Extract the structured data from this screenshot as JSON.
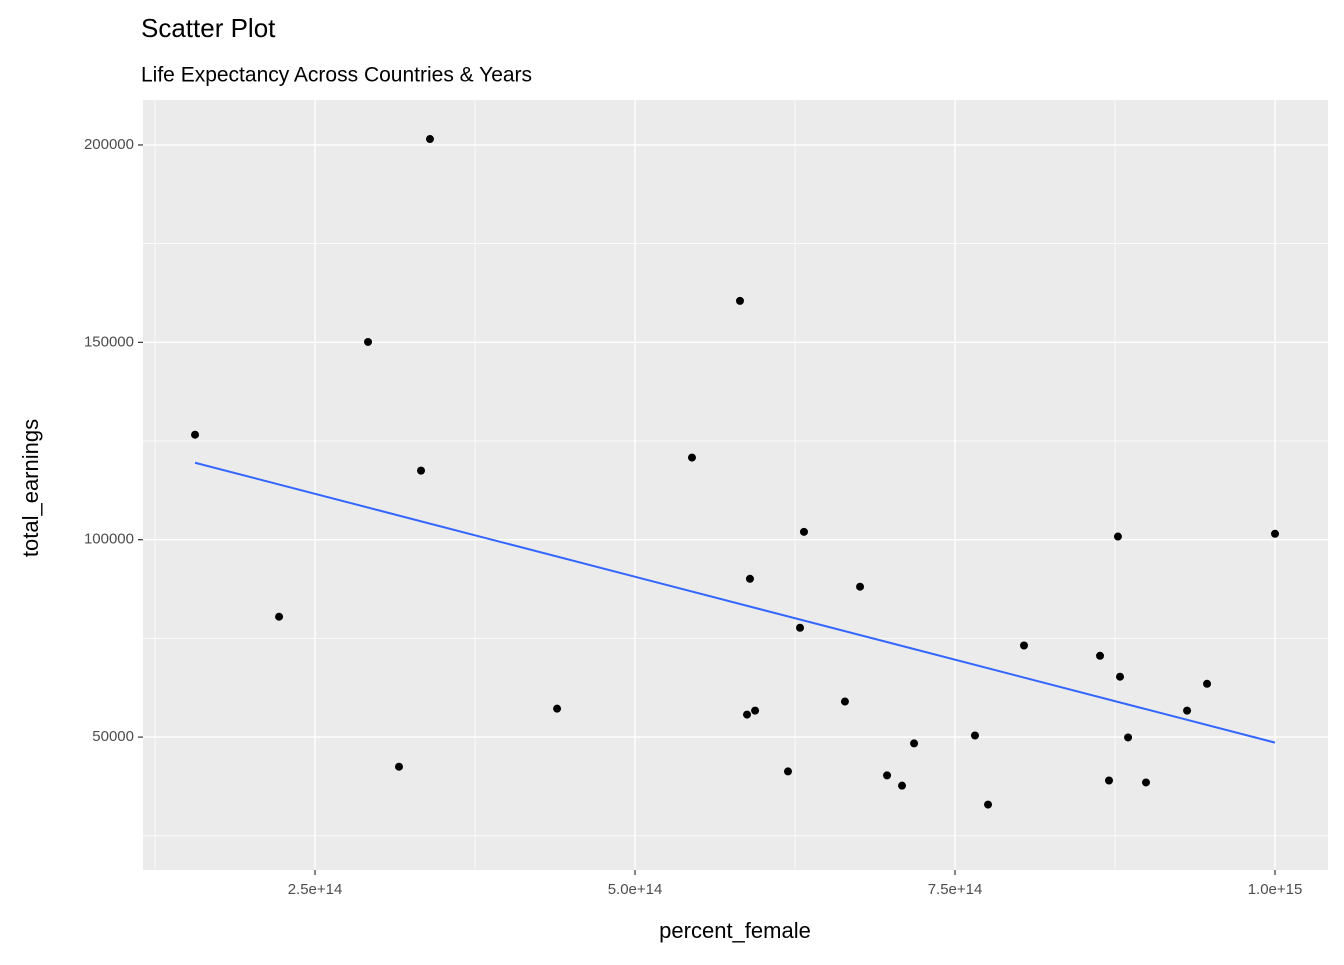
{
  "chart_data": {
    "type": "scatter",
    "title": "Scatter Plot",
    "subtitle": "Life Expectancy Across Countries & Years",
    "x_label": "percent_female",
    "y_label": "total_earnings",
    "x": [
      156250000000000.0,
      221900000000000.0,
      291400000000000.0,
      315600000000000.0,
      332800000000000.0,
      339800000000000.0,
      439100000000000.0,
      544500000000000.0,
      582000000000000.0,
      587500000000000.0,
      589800000000000.0,
      593800000000000.0,
      619500000000000.0,
      628900000000000.0,
      632000000000000.0,
      664000000000000.0,
      675800000000000.0,
      696900000000000.0,
      708600000000000.0,
      718000000000000.0,
      765600000000000.0,
      775800000000000.0,
      803900000000000.0,
      863300000000000.0,
      870300000000000.0,
      877300000000000.0,
      878900000000000.0,
      885200000000000.0,
      899200000000000.0,
      931300000000000.0,
      946900000000000.0,
      1000000000000000.0
    ],
    "values": [
      126600,
      80500,
      150100,
      42500,
      117500,
      201500,
      57200,
      120800,
      160500,
      55700,
      90100,
      56700,
      41300,
      77700,
      102000,
      59000,
      88100,
      40300,
      37700,
      48400,
      50400,
      32900,
      73200,
      70600,
      39000,
      100800,
      65300,
      49900,
      38500,
      56700,
      63500,
      101500
    ],
    "color": "#000000",
    "trend_line": {
      "x": [
        156250000000000.0,
        1000000000000000.0
      ],
      "values": [
        119500,
        48600
      ],
      "color": "#3366FF"
    },
    "xlim": [
      115600000000000.0,
      1041400000000000.0
    ],
    "ylim": [
      16330,
      211390
    ],
    "xticks": [
      {
        "value": 250000000000000.0,
        "label": "2.5e+14"
      },
      {
        "value": 500000000000000.0,
        "label": "5.0e+14"
      },
      {
        "value": 750000000000000.0,
        "label": "7.5e+14"
      },
      {
        "value": 1000000000000000.0,
        "label": "1.0e+15"
      }
    ],
    "yticks": [
      50000,
      100000,
      150000,
      200000
    ],
    "x_minor_grid": [
      125000000000000.0,
      375000000000000.0,
      625000000000000.0,
      875000000000000.0
    ],
    "y_minor_grid": [
      25000,
      75000,
      125000,
      175000
    ],
    "grid": true
  }
}
